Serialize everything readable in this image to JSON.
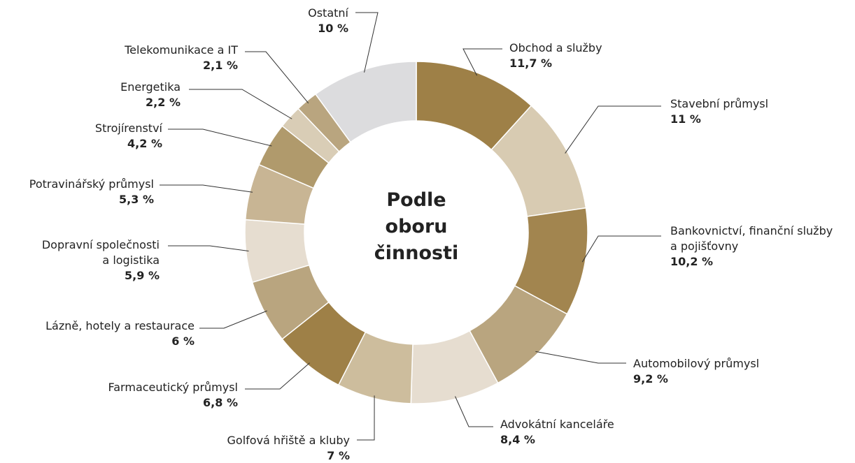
{
  "chart_data": {
    "type": "donut",
    "center_label": "Podle\noboru\nčinnosti",
    "categories": [
      "Obchod a služby",
      "Stavební průmysl",
      "Bankovnictví, finanční služby\na pojišťovny",
      "Automobilový průmysl",
      "Advokátní kanceláře",
      "Golfová hřiště a kluby",
      "Farmaceutický průmysl",
      "Lázně, hotely a restaurace",
      "Dopravní společnosti\na logistika",
      "Potravinářský průmysl",
      "Strojírenství",
      "Energetika",
      "Telekomunikace a IT",
      "Ostatní"
    ],
    "values": [
      11.7,
      11,
      10.2,
      9.2,
      8.4,
      7,
      6.8,
      6,
      5.9,
      5.3,
      4.2,
      2.2,
      2.1,
      10
    ],
    "value_labels": [
      "11,7 %",
      "11 %",
      "10,2 %",
      "9,2 %",
      "8,4 %",
      "7 %",
      "6,8 %",
      "6 %",
      "5,9 %",
      "5,3 %",
      "4,2 %",
      "2,2 %",
      "2,1 %",
      "10 %"
    ],
    "colors": [
      "#9e8047",
      "#d8cbb2",
      "#a2854f",
      "#b9a57f",
      "#e6ddd0",
      "#cdbd9d",
      "#9e8047",
      "#b9a57f",
      "#e6ddd0",
      "#c8b594",
      "#b09a6c",
      "#d9cdb6",
      "#b9a57f",
      "#dcdcde"
    ]
  }
}
